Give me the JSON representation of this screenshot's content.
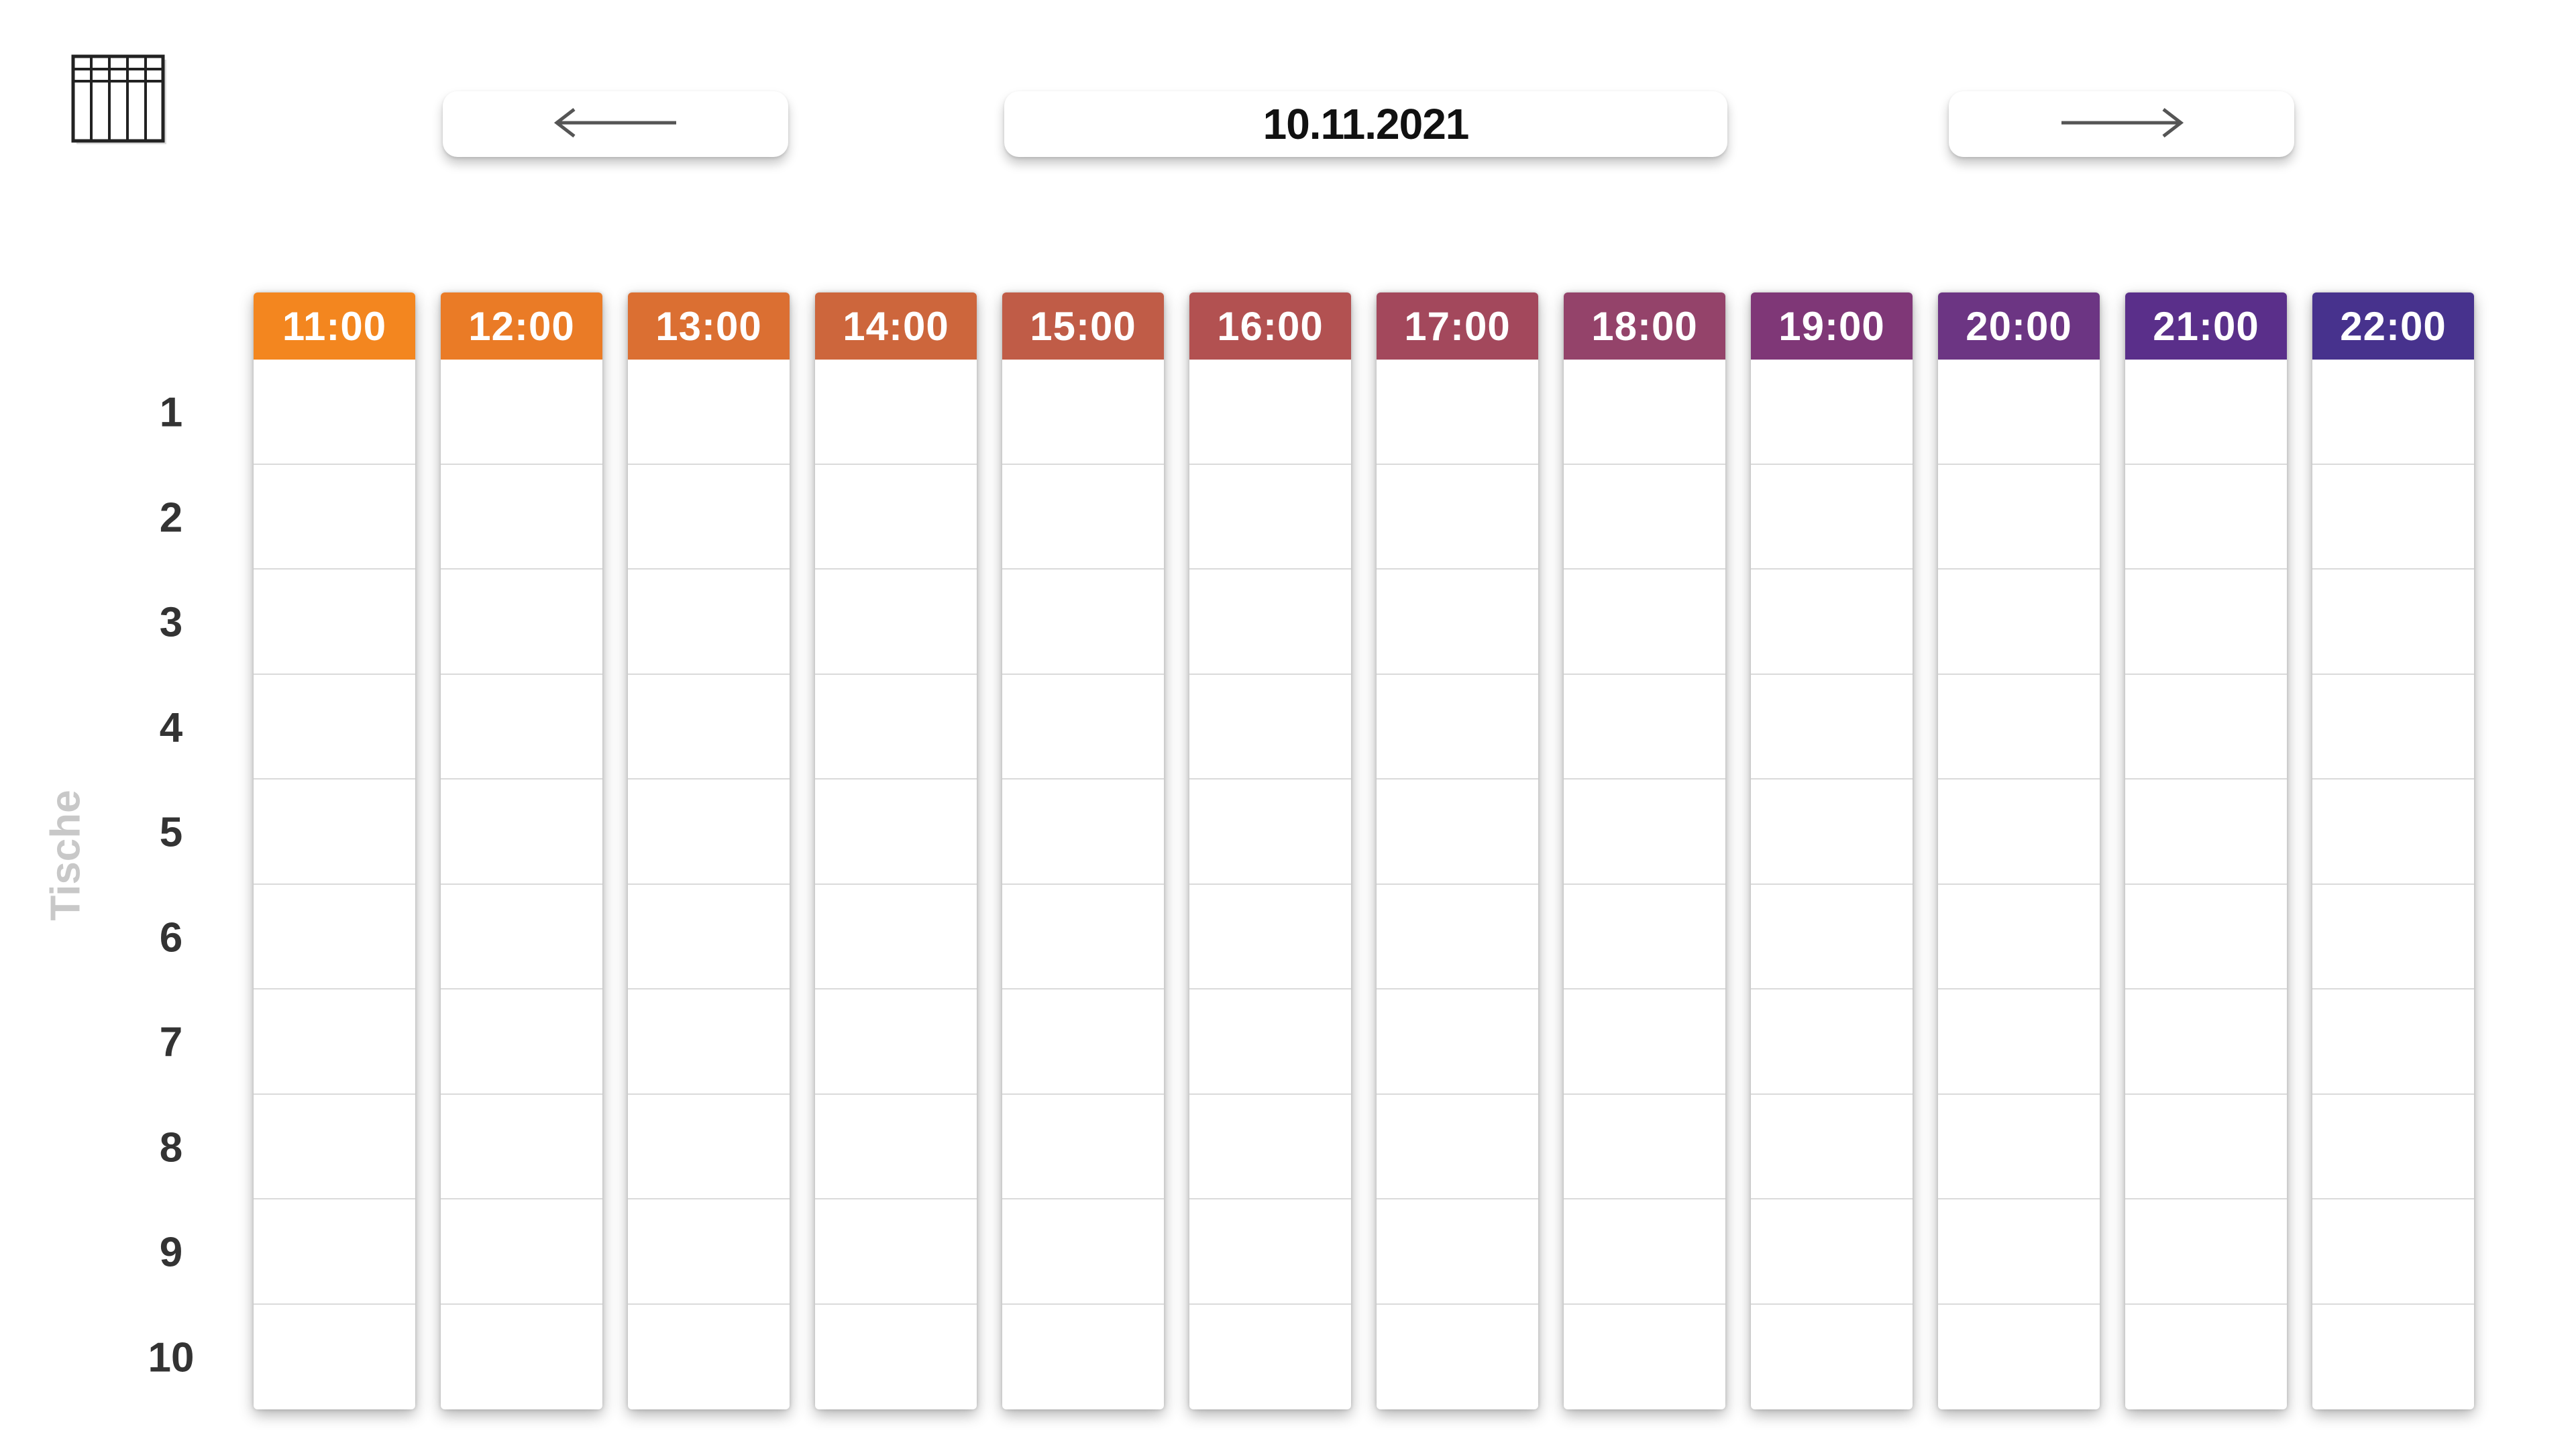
{
  "toolbar": {
    "grid_icon": "calendar-grid-icon",
    "prev_icon": "arrow-left-icon",
    "next_icon": "arrow-right-icon",
    "date": "10.11.2021"
  },
  "y_axis_label": "Tische",
  "tables": [
    "1",
    "2",
    "3",
    "4",
    "5",
    "6",
    "7",
    "8",
    "9",
    "10"
  ],
  "time_slots": [
    {
      "label": "11:00",
      "color": "#F3861F"
    },
    {
      "label": "12:00",
      "color": "#EA7B26"
    },
    {
      "label": "13:00",
      "color": "#DB6F32"
    },
    {
      "label": "14:00",
      "color": "#CD663C"
    },
    {
      "label": "15:00",
      "color": "#C05C47"
    },
    {
      "label": "16:00",
      "color": "#B25151"
    },
    {
      "label": "17:00",
      "color": "#A3485C"
    },
    {
      "label": "18:00",
      "color": "#94436A"
    },
    {
      "label": "19:00",
      "color": "#7F3777"
    },
    {
      "label": "20:00",
      "color": "#6C3583"
    },
    {
      "label": "21:00",
      "color": "#5A2F8A"
    },
    {
      "label": "22:00",
      "color": "#47328D"
    }
  ]
}
